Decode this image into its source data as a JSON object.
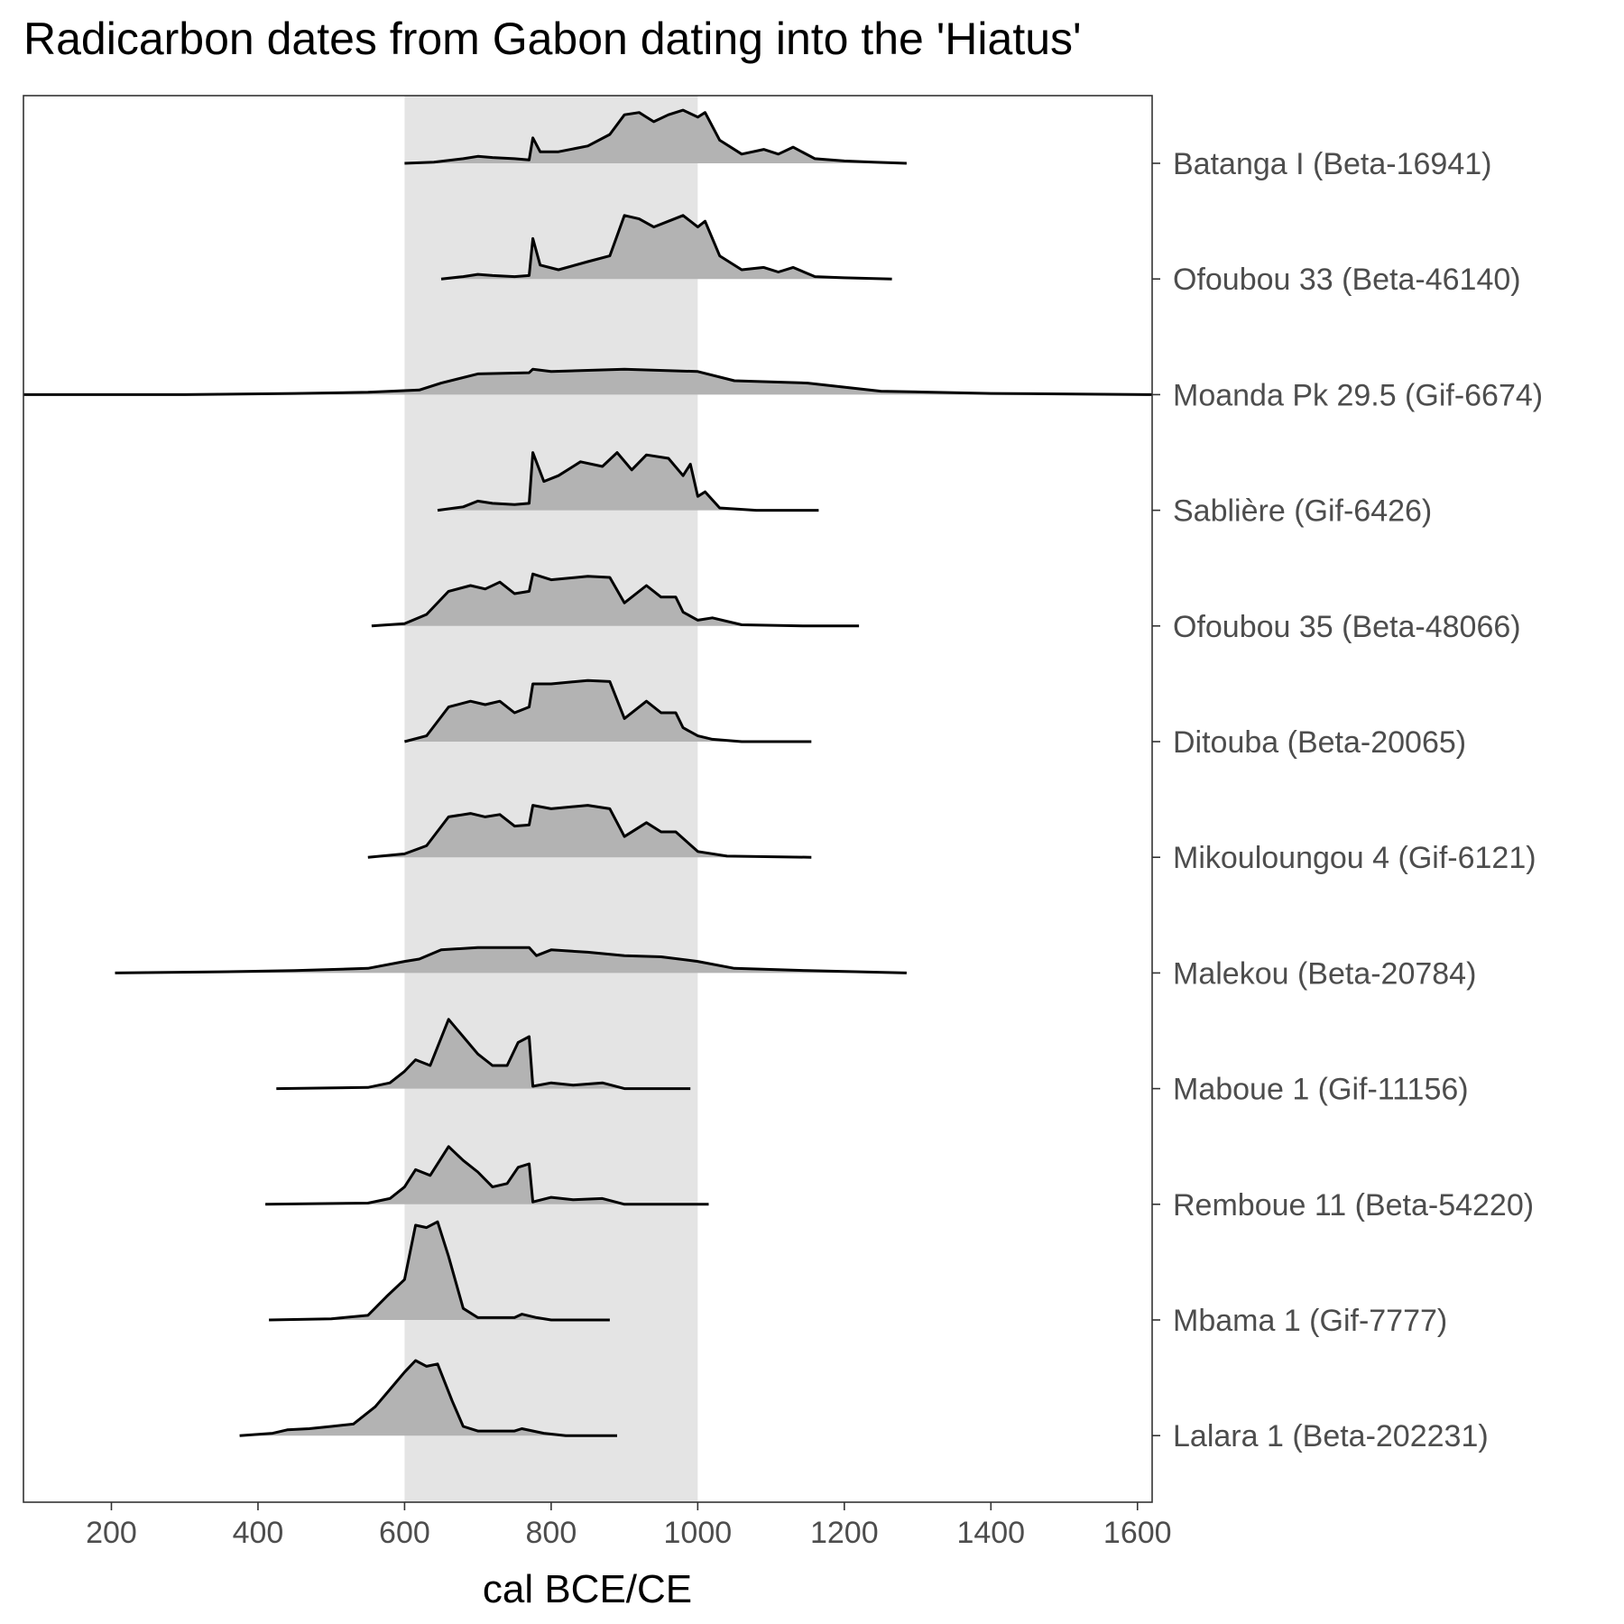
{
  "chart_data": {
    "type": "area",
    "title": "Radicarbon dates from Gabon dating into the 'Hiatus'",
    "xlabel": "cal BCE/CE",
    "ylabel": "",
    "xlim": [
      80,
      1620
    ],
    "x_ticks": [
      200,
      400,
      600,
      800,
      1000,
      1200,
      1400,
      1600
    ],
    "grid": false,
    "highlight_band": {
      "from": 600,
      "to": 1000,
      "color": "#e4e4e4"
    },
    "fill_color": "#b3b3b3",
    "line_color": "#000000",
    "categories": [
      "Batanga I (Beta-16941)",
      "Ofoubou 33 (Beta-46140)",
      "Moanda Pk 29.5 (Gif-6674)",
      "Sablière (Gif-6426)",
      "Ofoubou 35 (Beta-48066)",
      "Ditouba (Beta-20065)",
      "Mikouloungou 4 (Gif-6121)",
      "Malekou (Beta-20784)",
      "Maboue 1 (Gif-11156)",
      "Remboue 11 (Beta-54220)",
      "Mbama 1 (Gif-7777)",
      "Lalara 1 (Beta-202231)"
    ],
    "series": [
      {
        "name": "Batanga I (Beta-16941)",
        "points": [
          [
            600,
            0
          ],
          [
            640,
            0.01
          ],
          [
            680,
            0.04
          ],
          [
            700,
            0.06
          ],
          [
            720,
            0.05
          ],
          [
            750,
            0.04
          ],
          [
            770,
            0.03
          ],
          [
            775,
            0.22
          ],
          [
            785,
            0.1
          ],
          [
            810,
            0.1
          ],
          [
            850,
            0.15
          ],
          [
            880,
            0.25
          ],
          [
            900,
            0.42
          ],
          [
            920,
            0.44
          ],
          [
            940,
            0.36
          ],
          [
            960,
            0.42
          ],
          [
            980,
            0.46
          ],
          [
            1000,
            0.4
          ],
          [
            1010,
            0.44
          ],
          [
            1030,
            0.2
          ],
          [
            1060,
            0.08
          ],
          [
            1090,
            0.12
          ],
          [
            1110,
            0.08
          ],
          [
            1130,
            0.14
          ],
          [
            1160,
            0.04
          ],
          [
            1200,
            0.02
          ],
          [
            1240,
            0.01
          ],
          [
            1285,
            0
          ]
        ]
      },
      {
        "name": "Ofoubou 33 (Beta-46140)",
        "points": [
          [
            650,
            0
          ],
          [
            680,
            0.02
          ],
          [
            700,
            0.04
          ],
          [
            720,
            0.03
          ],
          [
            750,
            0.02
          ],
          [
            770,
            0.03
          ],
          [
            775,
            0.35
          ],
          [
            785,
            0.12
          ],
          [
            810,
            0.08
          ],
          [
            850,
            0.15
          ],
          [
            880,
            0.2
          ],
          [
            900,
            0.55
          ],
          [
            920,
            0.52
          ],
          [
            940,
            0.45
          ],
          [
            960,
            0.5
          ],
          [
            980,
            0.55
          ],
          [
            1000,
            0.45
          ],
          [
            1010,
            0.5
          ],
          [
            1030,
            0.2
          ],
          [
            1060,
            0.08
          ],
          [
            1090,
            0.1
          ],
          [
            1110,
            0.06
          ],
          [
            1130,
            0.1
          ],
          [
            1160,
            0.02
          ],
          [
            1200,
            0.01
          ],
          [
            1265,
            0
          ]
        ]
      },
      {
        "name": "Moanda Pk 29.5 (Gif-6674)",
        "points": [
          [
            80,
            0
          ],
          [
            300,
            0
          ],
          [
            450,
            0.01
          ],
          [
            550,
            0.02
          ],
          [
            620,
            0.04
          ],
          [
            650,
            0.1
          ],
          [
            700,
            0.18
          ],
          [
            770,
            0.19
          ],
          [
            775,
            0.22
          ],
          [
            800,
            0.2
          ],
          [
            900,
            0.22
          ],
          [
            1000,
            0.2
          ],
          [
            1050,
            0.12
          ],
          [
            1150,
            0.1
          ],
          [
            1250,
            0.03
          ],
          [
            1400,
            0.01
          ],
          [
            1620,
            0
          ]
        ]
      },
      {
        "name": "Sablière (Gif-6426)",
        "points": [
          [
            645,
            0
          ],
          [
            680,
            0.03
          ],
          [
            700,
            0.08
          ],
          [
            720,
            0.06
          ],
          [
            750,
            0.05
          ],
          [
            770,
            0.06
          ],
          [
            775,
            0.5
          ],
          [
            790,
            0.25
          ],
          [
            810,
            0.3
          ],
          [
            840,
            0.42
          ],
          [
            870,
            0.38
          ],
          [
            890,
            0.5
          ],
          [
            910,
            0.35
          ],
          [
            930,
            0.48
          ],
          [
            960,
            0.45
          ],
          [
            980,
            0.3
          ],
          [
            990,
            0.4
          ],
          [
            1000,
            0.12
          ],
          [
            1010,
            0.16
          ],
          [
            1030,
            0.02
          ],
          [
            1080,
            0
          ],
          [
            1165,
            0
          ]
        ]
      },
      {
        "name": "Ofoubou 35 (Beta-48066)",
        "points": [
          [
            555,
            0
          ],
          [
            600,
            0.02
          ],
          [
            630,
            0.1
          ],
          [
            660,
            0.3
          ],
          [
            690,
            0.35
          ],
          [
            710,
            0.32
          ],
          [
            730,
            0.38
          ],
          [
            750,
            0.28
          ],
          [
            770,
            0.3
          ],
          [
            775,
            0.45
          ],
          [
            800,
            0.4
          ],
          [
            850,
            0.43
          ],
          [
            880,
            0.42
          ],
          [
            900,
            0.2
          ],
          [
            930,
            0.35
          ],
          [
            950,
            0.25
          ],
          [
            970,
            0.25
          ],
          [
            980,
            0.12
          ],
          [
            1000,
            0.05
          ],
          [
            1020,
            0.07
          ],
          [
            1060,
            0.01
          ],
          [
            1150,
            0
          ],
          [
            1220,
            0
          ]
        ]
      },
      {
        "name": "Ditouba (Beta-20065)",
        "points": [
          [
            600,
            0
          ],
          [
            630,
            0.05
          ],
          [
            660,
            0.3
          ],
          [
            690,
            0.35
          ],
          [
            710,
            0.32
          ],
          [
            730,
            0.35
          ],
          [
            750,
            0.25
          ],
          [
            770,
            0.3
          ],
          [
            775,
            0.5
          ],
          [
            800,
            0.5
          ],
          [
            850,
            0.53
          ],
          [
            880,
            0.52
          ],
          [
            900,
            0.2
          ],
          [
            930,
            0.35
          ],
          [
            950,
            0.25
          ],
          [
            970,
            0.25
          ],
          [
            980,
            0.12
          ],
          [
            1000,
            0.05
          ],
          [
            1020,
            0.02
          ],
          [
            1060,
            0
          ],
          [
            1155,
            0
          ]
        ]
      },
      {
        "name": "Mikouloungou 4 (Gif-6121)",
        "points": [
          [
            550,
            0
          ],
          [
            600,
            0.03
          ],
          [
            630,
            0.1
          ],
          [
            660,
            0.35
          ],
          [
            690,
            0.38
          ],
          [
            710,
            0.35
          ],
          [
            730,
            0.37
          ],
          [
            750,
            0.27
          ],
          [
            770,
            0.28
          ],
          [
            775,
            0.45
          ],
          [
            800,
            0.42
          ],
          [
            850,
            0.45
          ],
          [
            880,
            0.42
          ],
          [
            900,
            0.18
          ],
          [
            930,
            0.3
          ],
          [
            950,
            0.22
          ],
          [
            970,
            0.22
          ],
          [
            1000,
            0.05
          ],
          [
            1040,
            0.01
          ],
          [
            1155,
            0
          ]
        ]
      },
      {
        "name": "Malekou (Beta-20784)",
        "points": [
          [
            205,
            0
          ],
          [
            350,
            0.01
          ],
          [
            450,
            0.02
          ],
          [
            550,
            0.04
          ],
          [
            600,
            0.1
          ],
          [
            620,
            0.12
          ],
          [
            650,
            0.2
          ],
          [
            700,
            0.22
          ],
          [
            770,
            0.22
          ],
          [
            780,
            0.15
          ],
          [
            800,
            0.2
          ],
          [
            850,
            0.18
          ],
          [
            900,
            0.15
          ],
          [
            950,
            0.14
          ],
          [
            1000,
            0.1
          ],
          [
            1050,
            0.04
          ],
          [
            1150,
            0.02
          ],
          [
            1285,
            0
          ]
        ]
      },
      {
        "name": "Maboue 1 (Gif-11156)",
        "points": [
          [
            425,
            0
          ],
          [
            550,
            0.01
          ],
          [
            580,
            0.05
          ],
          [
            600,
            0.15
          ],
          [
            615,
            0.25
          ],
          [
            635,
            0.2
          ],
          [
            660,
            0.6
          ],
          [
            680,
            0.45
          ],
          [
            700,
            0.3
          ],
          [
            720,
            0.2
          ],
          [
            740,
            0.2
          ],
          [
            755,
            0.4
          ],
          [
            770,
            0.45
          ],
          [
            775,
            0.02
          ],
          [
            800,
            0.05
          ],
          [
            830,
            0.03
          ],
          [
            870,
            0.05
          ],
          [
            900,
            0
          ],
          [
            990,
            0
          ]
        ]
      },
      {
        "name": "Remboue 11 (Beta-54220)",
        "points": [
          [
            410,
            0
          ],
          [
            550,
            0.01
          ],
          [
            580,
            0.05
          ],
          [
            600,
            0.15
          ],
          [
            615,
            0.3
          ],
          [
            635,
            0.25
          ],
          [
            660,
            0.5
          ],
          [
            680,
            0.38
          ],
          [
            700,
            0.28
          ],
          [
            720,
            0.15
          ],
          [
            740,
            0.18
          ],
          [
            755,
            0.32
          ],
          [
            770,
            0.35
          ],
          [
            775,
            0.02
          ],
          [
            800,
            0.06
          ],
          [
            830,
            0.04
          ],
          [
            870,
            0.05
          ],
          [
            900,
            0
          ],
          [
            1015,
            0
          ]
        ]
      },
      {
        "name": "Mbama 1 (Gif-7777)",
        "points": [
          [
            415,
            0
          ],
          [
            500,
            0.01
          ],
          [
            550,
            0.04
          ],
          [
            575,
            0.2
          ],
          [
            600,
            0.35
          ],
          [
            615,
            0.82
          ],
          [
            630,
            0.8
          ],
          [
            645,
            0.85
          ],
          [
            660,
            0.55
          ],
          [
            680,
            0.1
          ],
          [
            700,
            0.02
          ],
          [
            750,
            0.02
          ],
          [
            760,
            0.05
          ],
          [
            780,
            0.02
          ],
          [
            800,
            0
          ],
          [
            880,
            0
          ]
        ]
      },
      {
        "name": "Lalara 1 (Beta-202231)",
        "points": [
          [
            375,
            0
          ],
          [
            420,
            0.02
          ],
          [
            440,
            0.05
          ],
          [
            470,
            0.06
          ],
          [
            500,
            0.08
          ],
          [
            530,
            0.1
          ],
          [
            560,
            0.25
          ],
          [
            580,
            0.4
          ],
          [
            600,
            0.55
          ],
          [
            615,
            0.65
          ],
          [
            630,
            0.6
          ],
          [
            645,
            0.62
          ],
          [
            665,
            0.3
          ],
          [
            680,
            0.08
          ],
          [
            700,
            0.04
          ],
          [
            750,
            0.04
          ],
          [
            760,
            0.06
          ],
          [
            790,
            0.02
          ],
          [
            820,
            0
          ],
          [
            890,
            0
          ]
        ]
      }
    ]
  }
}
